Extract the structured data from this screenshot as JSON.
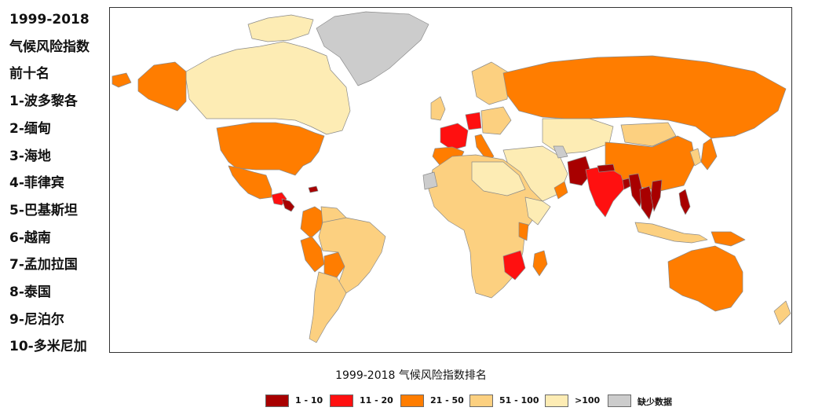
{
  "colors": {
    "rank_1_10": "#a80000",
    "rank_11_20": "#ff1010",
    "rank_21_50": "#ff7d00",
    "rank_51_100": "#fcd080",
    "rank_over_100": "#fdecb4",
    "missing": "#cccccc",
    "ocean": "#ffffff"
  },
  "side_panel": {
    "year_range": "1999-2018",
    "index_name": "气候风险指数",
    "top_ten_heading": "前十名",
    "ranking": [
      "1-波多黎各",
      "2-缅甸",
      "3-海地",
      "4-菲律宾",
      "5-巴基斯坦",
      "6-越南",
      "7-孟加拉国",
      "8-泰国",
      "9-尼泊尔",
      "10-多米尼加"
    ]
  },
  "map_title": "1999-2018 气候风险指数排名",
  "legend": [
    {
      "label": "1 - 10",
      "color": "#a80000"
    },
    {
      "label": "11 - 20",
      "color": "#ff1010"
    },
    {
      "label": "21 - 50",
      "color": "#ff7d00"
    },
    {
      "label": "51 - 100",
      "color": "#fcd080"
    },
    {
      "label": ">100",
      "color": "#fdecb4"
    },
    {
      "label": "缺少数据",
      "color": "#cccccc"
    }
  ]
}
